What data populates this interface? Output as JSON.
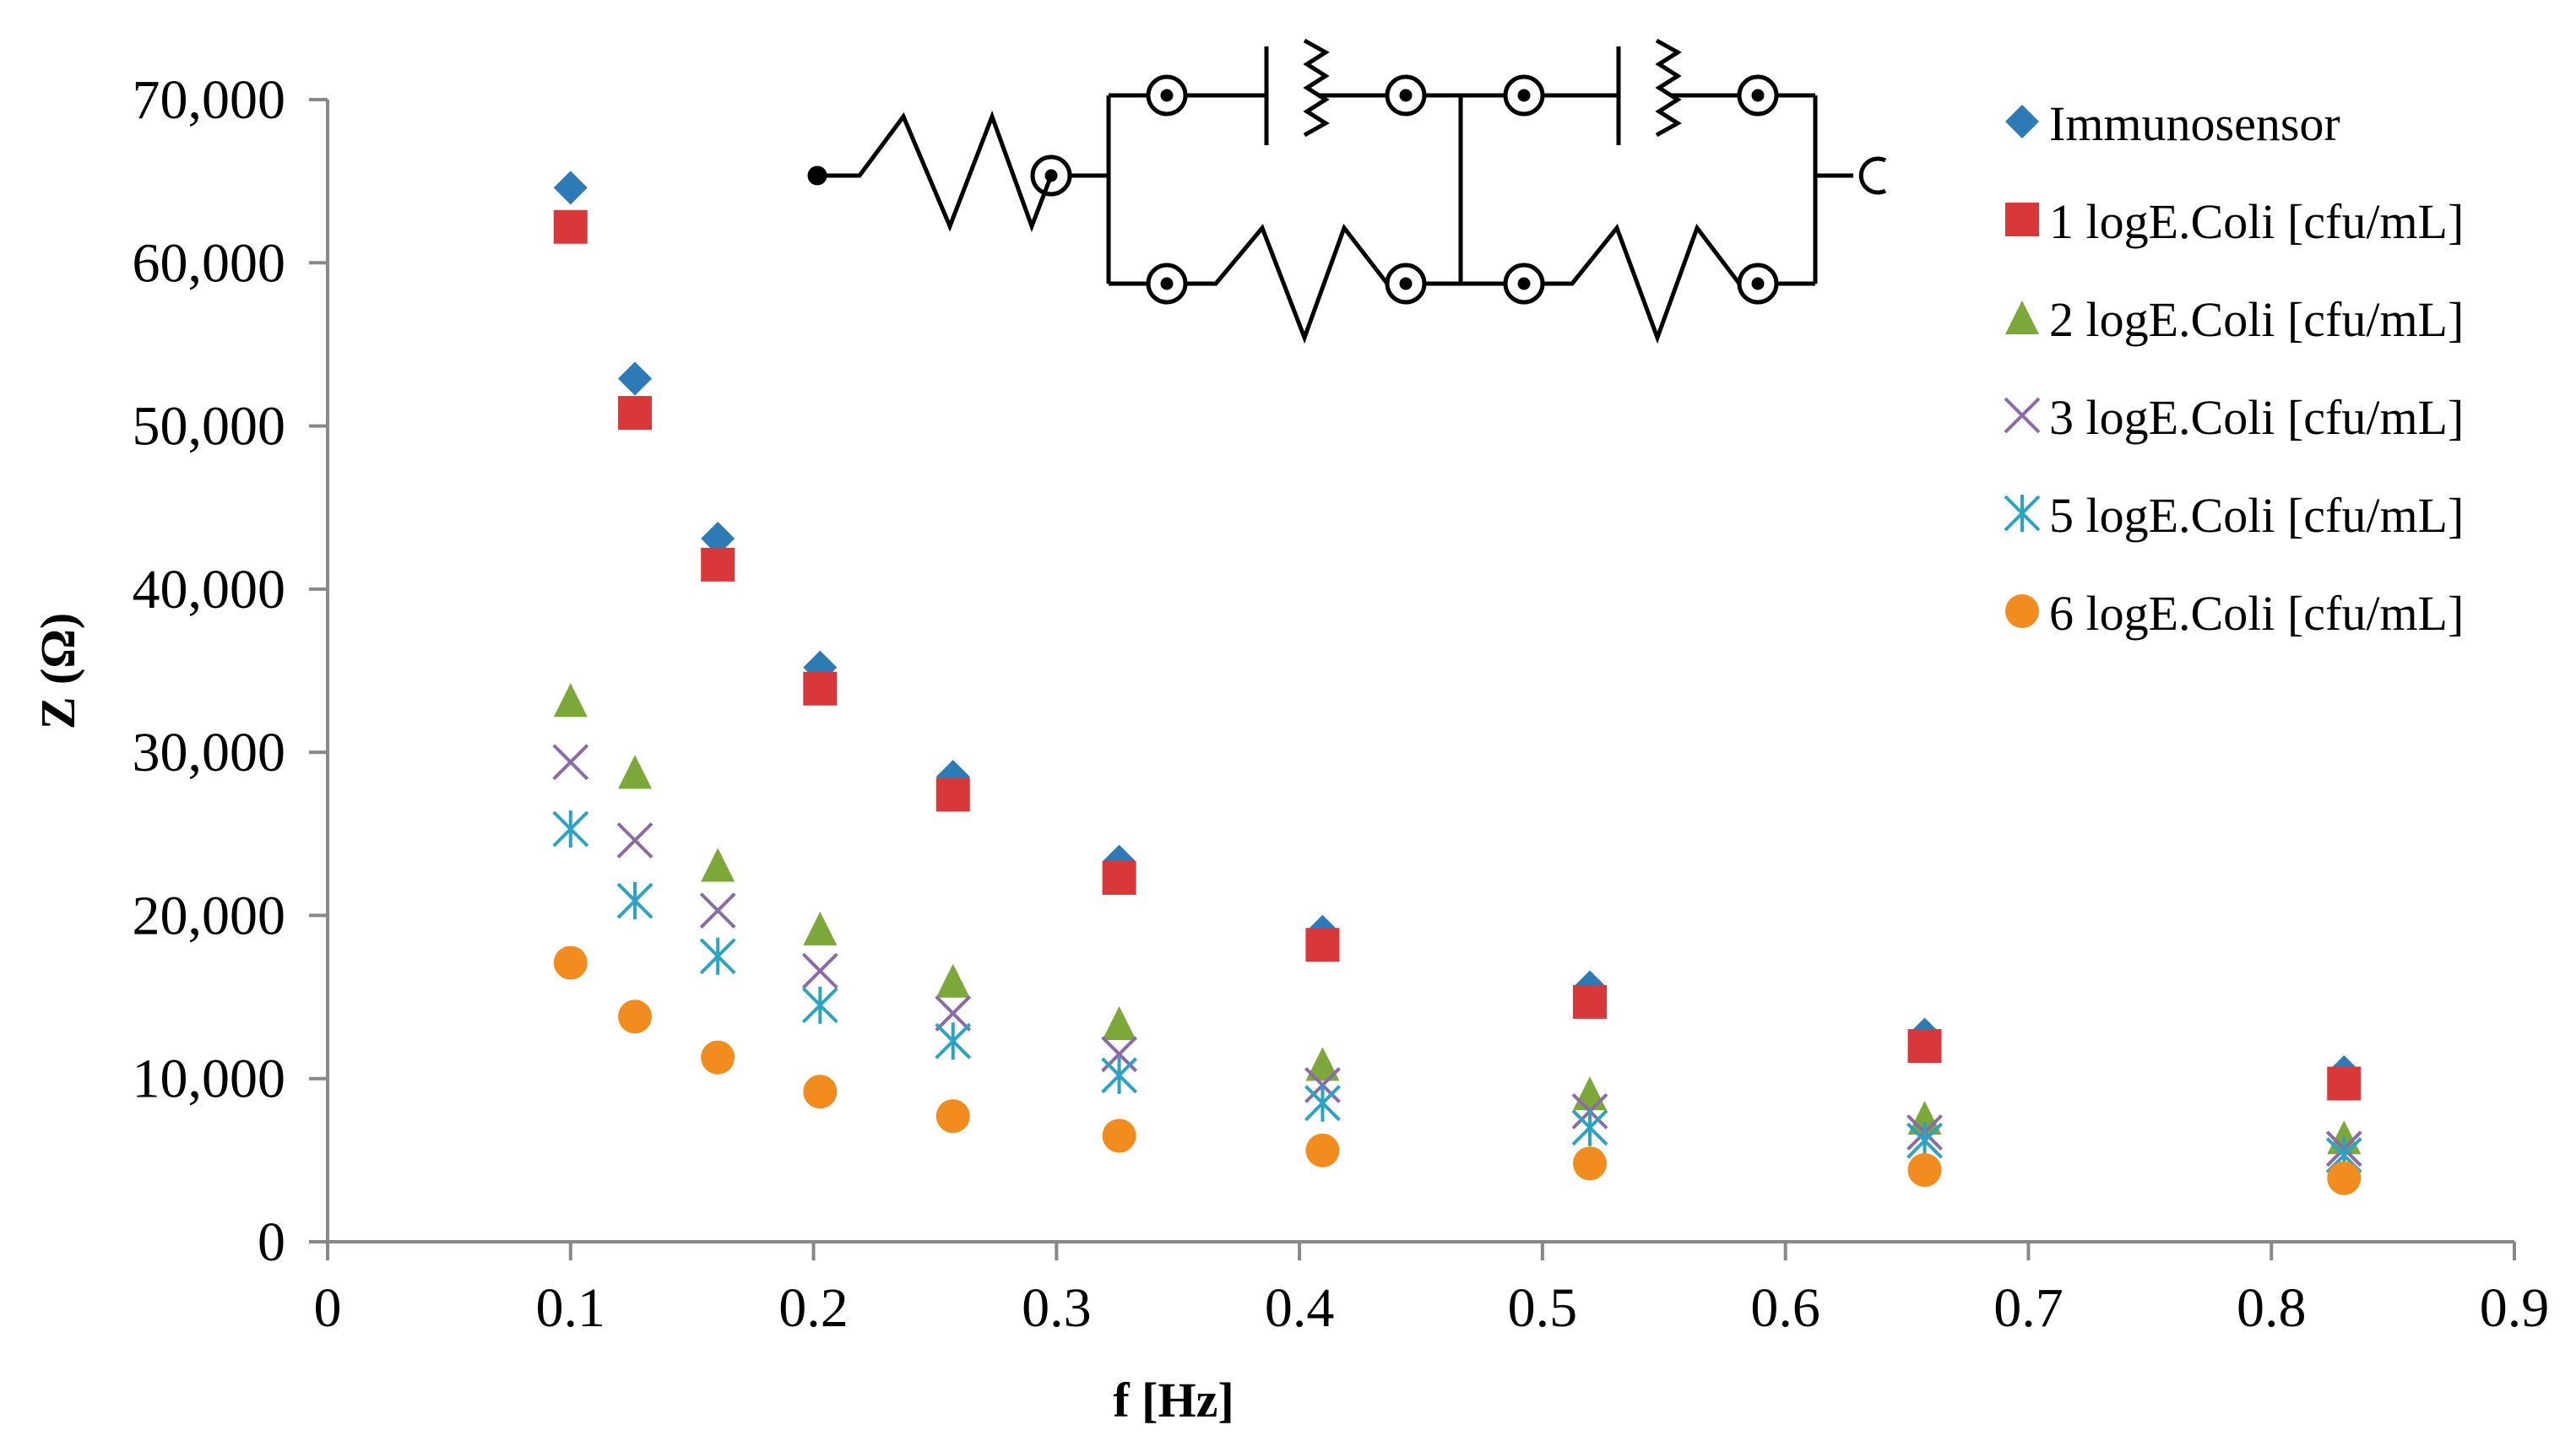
{
  "chart_data": {
    "type": "scatter",
    "title": "",
    "xlabel": "f [Hz]",
    "ylabel": "Z (Ω)",
    "xlim": [
      0,
      0.9
    ],
    "ylim": [
      0,
      70000
    ],
    "x_ticks": [
      "0",
      "0.1",
      "0.2",
      "0.3",
      "0.4",
      "0.5",
      "0.6",
      "0.7",
      "0.8",
      "0.9"
    ],
    "x_tick_values": [
      0,
      0.1,
      0.2,
      0.3,
      0.4,
      0.5,
      0.6,
      0.7,
      0.8,
      0.9
    ],
    "y_ticks": [
      "0",
      "10,000",
      "20,000",
      "30,000",
      "40,000",
      "50,000",
      "60,000",
      "70,000"
    ],
    "y_tick_values": [
      0,
      10000,
      20000,
      30000,
      40000,
      50000,
      60000,
      70000
    ],
    "grid": false,
    "legend_position": "top-right",
    "x": [
      0.1,
      0.1265,
      0.1606,
      0.2027,
      0.2574,
      0.3258,
      0.4095,
      0.5195,
      0.6573,
      0.8299
    ],
    "series": [
      {
        "name": "Immunosensor",
        "marker": "diamond",
        "color": "#2C7BB6",
        "values": [
          64600,
          52900,
          43100,
          35200,
          28500,
          23300,
          19000,
          15600,
          12700,
          10400
        ]
      },
      {
        "name": "1 logE.Coli [cfu/mL]",
        "marker": "square",
        "color": "#D8383A",
        "values": [
          62200,
          50800,
          41500,
          33900,
          27400,
          22300,
          18200,
          14700,
          12000,
          9700
        ]
      },
      {
        "name": "2 logE.Coli [cfu/mL]",
        "marker": "triangle",
        "color": "#7CA83A",
        "values": [
          33200,
          28800,
          23100,
          19200,
          16000,
          13400,
          10900,
          9100,
          7600,
          6400
        ]
      },
      {
        "name": "3 logE.Coli [cfu/mL]",
        "marker": "x",
        "color": "#8B6AA8",
        "values": [
          29400,
          24600,
          20300,
          16600,
          14000,
          11500,
          9600,
          8000,
          6700,
          5700
        ]
      },
      {
        "name": "5 logE.Coli [cfu/mL]",
        "marker": "asterisk",
        "color": "#2BA3C2",
        "values": [
          25300,
          20900,
          17500,
          14500,
          12300,
          10200,
          8500,
          7000,
          6200,
          5300
        ]
      },
      {
        "name": "6 logE.Coli [cfu/mL]",
        "marker": "circle",
        "color": "#F28C1E",
        "values": [
          17100,
          13800,
          11300,
          9200,
          7700,
          6500,
          5600,
          4800,
          4400,
          3900
        ]
      }
    ]
  }
}
